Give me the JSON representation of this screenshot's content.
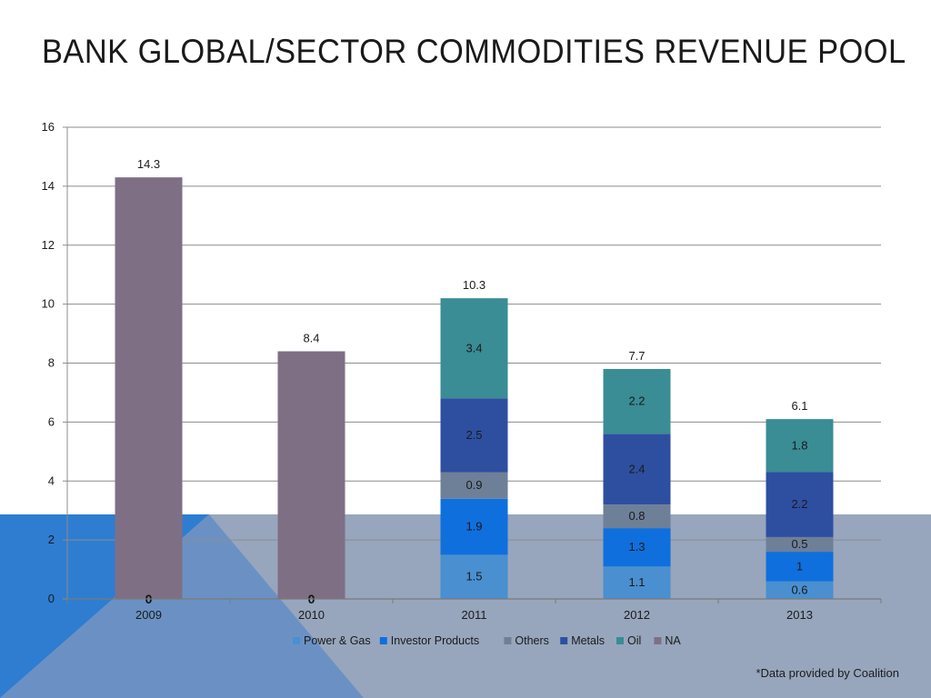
{
  "slide": {
    "title": "BANK GLOBAL/SECTOR COMMODITIES REVENUE POOL",
    "footnote": "*Data provided by Coalition"
  },
  "colors": {
    "background_band": "#97A6BD",
    "background_triangle_dark": "#2E7DD1",
    "background_triangle_light": "#6B91C4",
    "gridline": "#8C8C8C",
    "text": "#1a1a1a"
  },
  "chart_data": {
    "type": "bar",
    "stacked": true,
    "title": "",
    "xlabel": "",
    "ylabel": "",
    "ylim": [
      0,
      16
    ],
    "yticks": [
      0,
      2,
      4,
      6,
      8,
      10,
      12,
      14,
      16
    ],
    "grid": true,
    "legend_position": "bottom",
    "categories": [
      "2009",
      "2010",
      "2011",
      "2012",
      "2013"
    ],
    "series": [
      {
        "name": "Power & Gas",
        "color": "#4A8FD0",
        "values": [
          0,
          0,
          1.5,
          1.1,
          0.6
        ],
        "labels": [
          "",
          "",
          "1.5",
          "1.1",
          "0.6"
        ]
      },
      {
        "name": "Investor Products",
        "color": "#0F6FDD",
        "values": [
          0,
          0,
          1.9,
          1.3,
          1
        ],
        "labels": [
          "",
          "",
          "1.9",
          "1.3",
          "1"
        ]
      },
      {
        "name": "Others",
        "color": "#6E7F98",
        "values": [
          0,
          0,
          0.9,
          0.8,
          0.5
        ],
        "labels": [
          "",
          "",
          "0.9",
          "0.8",
          "0.5"
        ]
      },
      {
        "name": "Metals",
        "color": "#2E4FA0",
        "values": [
          0,
          0,
          2.5,
          2.4,
          2.2
        ],
        "labels": [
          "",
          "",
          "2.5",
          "2.4",
          "2.2"
        ]
      },
      {
        "name": "Oil",
        "color": "#3A8C95",
        "values": [
          0,
          0,
          3.4,
          2.2,
          1.8
        ],
        "labels": [
          "",
          "",
          "3.4",
          "2.2",
          "1.8"
        ]
      },
      {
        "name": "NA",
        "color": "#7E6F85",
        "values": [
          14.3,
          8.4,
          0,
          0,
          0
        ],
        "labels": [
          "",
          "",
          "",
          "",
          ""
        ]
      }
    ],
    "zero_labels": [
      "0",
      "0",
      "",
      "",
      ""
    ],
    "totals": [
      "14.3",
      "8.4",
      "10.3",
      "7.7",
      "6.1"
    ]
  }
}
